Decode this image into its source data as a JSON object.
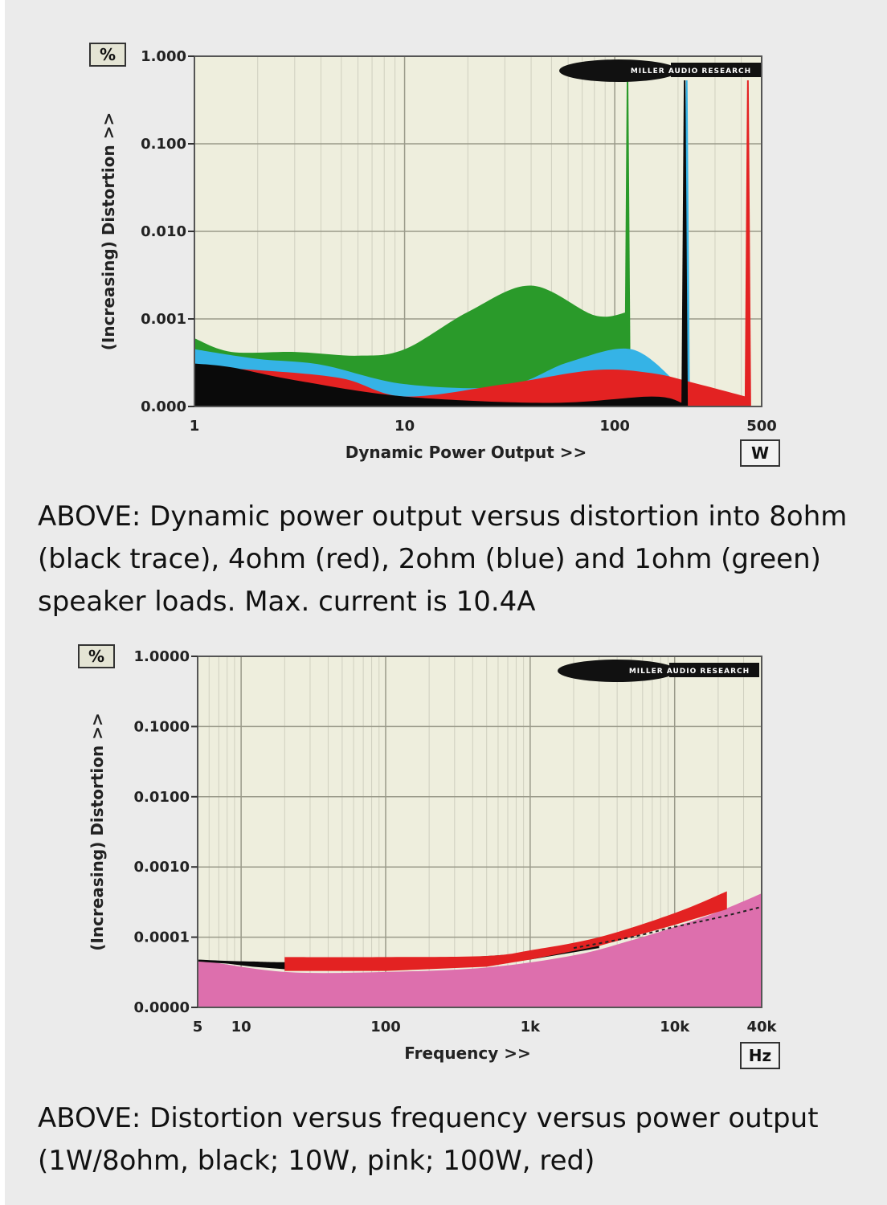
{
  "captions": {
    "first": "ABOVE: Dynamic power output versus distortion into 8ohm (black trace), 4ohm (red), 2ohm (blue) and 1ohm (green) speaker loads. Max. current is 10.4A",
    "second": "ABOVE: Distortion versus frequency versus power output (1W/8ohm, black; 10W, pink; 100W, red)"
  },
  "chart_data": [
    {
      "type": "area",
      "logo": "MILLER AUDIO RESEARCH",
      "xlabel": "Dynamic Power Output >>",
      "ylabel": "(Increasing) Distortion >>",
      "y_unit": "%",
      "x_unit": "W",
      "x_scale": "log",
      "xlim": [
        1,
        500
      ],
      "x_ticks": [
        {
          "value": 1,
          "label": "1"
        },
        {
          "value": 10,
          "label": "10"
        },
        {
          "value": 100,
          "label": "100"
        },
        {
          "value": 500,
          "label": "500"
        }
      ],
      "y_ticks": [
        "1.000",
        "0.100",
        "0.010",
        "0.001",
        "0.000"
      ],
      "grid": true,
      "series": [
        {
          "color": "#2a9a2a",
          "x": [
            1,
            1.5,
            3,
            6,
            10,
            20,
            40,
            80,
            115
          ],
          "upper": [
            0.0006,
            0.00042,
            0.00042,
            0.00038,
            0.00045,
            0.0012,
            0.0024,
            0.0011,
            0.0012
          ],
          "lower": 0,
          "spike_x": 115
        },
        {
          "color": "#35b3e6",
          "x": [
            1,
            2,
            4,
            10,
            30,
            60,
            120,
            200
          ],
          "upper": [
            0.00045,
            0.00035,
            0.0003,
            0.00018,
            0.00017,
            0.00032,
            0.00045,
            0.00018
          ],
          "lower": 0,
          "spike_x": 220
        },
        {
          "color": "#e32222",
          "x": [
            1,
            2,
            5,
            10,
            30,
            80,
            150,
            250,
            420
          ],
          "upper": [
            0.00028,
            0.00026,
            0.00021,
            0.00013,
            0.00018,
            0.00026,
            0.00024,
            0.00018,
            0.00013
          ],
          "lower": 0,
          "spike_x": 430
        },
        {
          "color": "#0a0a0a",
          "x": [
            1,
            1.5,
            3,
            10,
            50,
            150,
            210
          ],
          "upper": [
            0.00031,
            0.00028,
            0.0002,
            0.00013,
            0.00011,
            0.00013,
            0.00011
          ],
          "lower": 0,
          "spike_x": 215
        }
      ]
    },
    {
      "type": "area",
      "logo": "MILLER AUDIO RESEARCH",
      "xlabel": "Frequency >>",
      "ylabel": "(Increasing) Distortion >>",
      "y_unit": "%",
      "x_unit": "Hz",
      "x_scale": "log",
      "xlim": [
        5,
        40000
      ],
      "x_ticks": [
        {
          "value": 5,
          "label": "5"
        },
        {
          "value": 10,
          "label": "10"
        },
        {
          "value": 100,
          "label": "100"
        },
        {
          "value": 1000,
          "label": "1k"
        },
        {
          "value": 10000,
          "label": "10k"
        },
        {
          "value": 40000,
          "label": "40k"
        }
      ],
      "y_ticks": [
        "1.0000",
        "0.1000",
        "0.0100",
        "0.0010",
        "0.0001",
        "0.0000"
      ],
      "grid": true,
      "series": [
        {
          "color": "#dd6fad",
          "x": [
            5,
            20,
            100,
            500,
            2000,
            5000,
            10000,
            20000,
            40000
          ],
          "upper": [
            4.8e-05,
            3.2e-05,
            3.2e-05,
            3.7e-05,
            5.5e-05,
            9e-05,
            0.00014,
            0.00023,
            0.00042
          ],
          "lower": 0
        },
        {
          "color": "#0a0a0a",
          "x": [
            5,
            8,
            12,
            20,
            50,
            200,
            1000,
            3000
          ],
          "upper": [
            4.8e-05,
            4.6e-05,
            4.5e-05,
            4.4e-05,
            4.6e-05,
            4.9e-05,
            6e-05,
            8.5e-05
          ],
          "lower": [
            4.5e-05,
            4.2e-05,
            3.8e-05,
            3.5e-05,
            3.4e-05,
            3.8e-05,
            4.8e-05,
            7e-05
          ]
        },
        {
          "color": "#e32222",
          "x": [
            20,
            100,
            500,
            1000,
            3000,
            10000,
            23000
          ],
          "upper": [
            5.2e-05,
            5.2e-05,
            5.4e-05,
            6.5e-05,
            0.0001,
            0.00022,
            0.00045
          ],
          "lower": [
            3.3e-05,
            3.3e-05,
            3.8e-05,
            4.8e-05,
            7.5e-05,
            0.00015,
            0.00025
          ]
        }
      ],
      "dashed_line": {
        "color": "#222222",
        "x": [
          2000,
          5000,
          10000,
          20000,
          40000
        ],
        "y": [
          7e-05,
          0.0001,
          0.00014,
          0.00019,
          0.00027
        ]
      }
    }
  ]
}
